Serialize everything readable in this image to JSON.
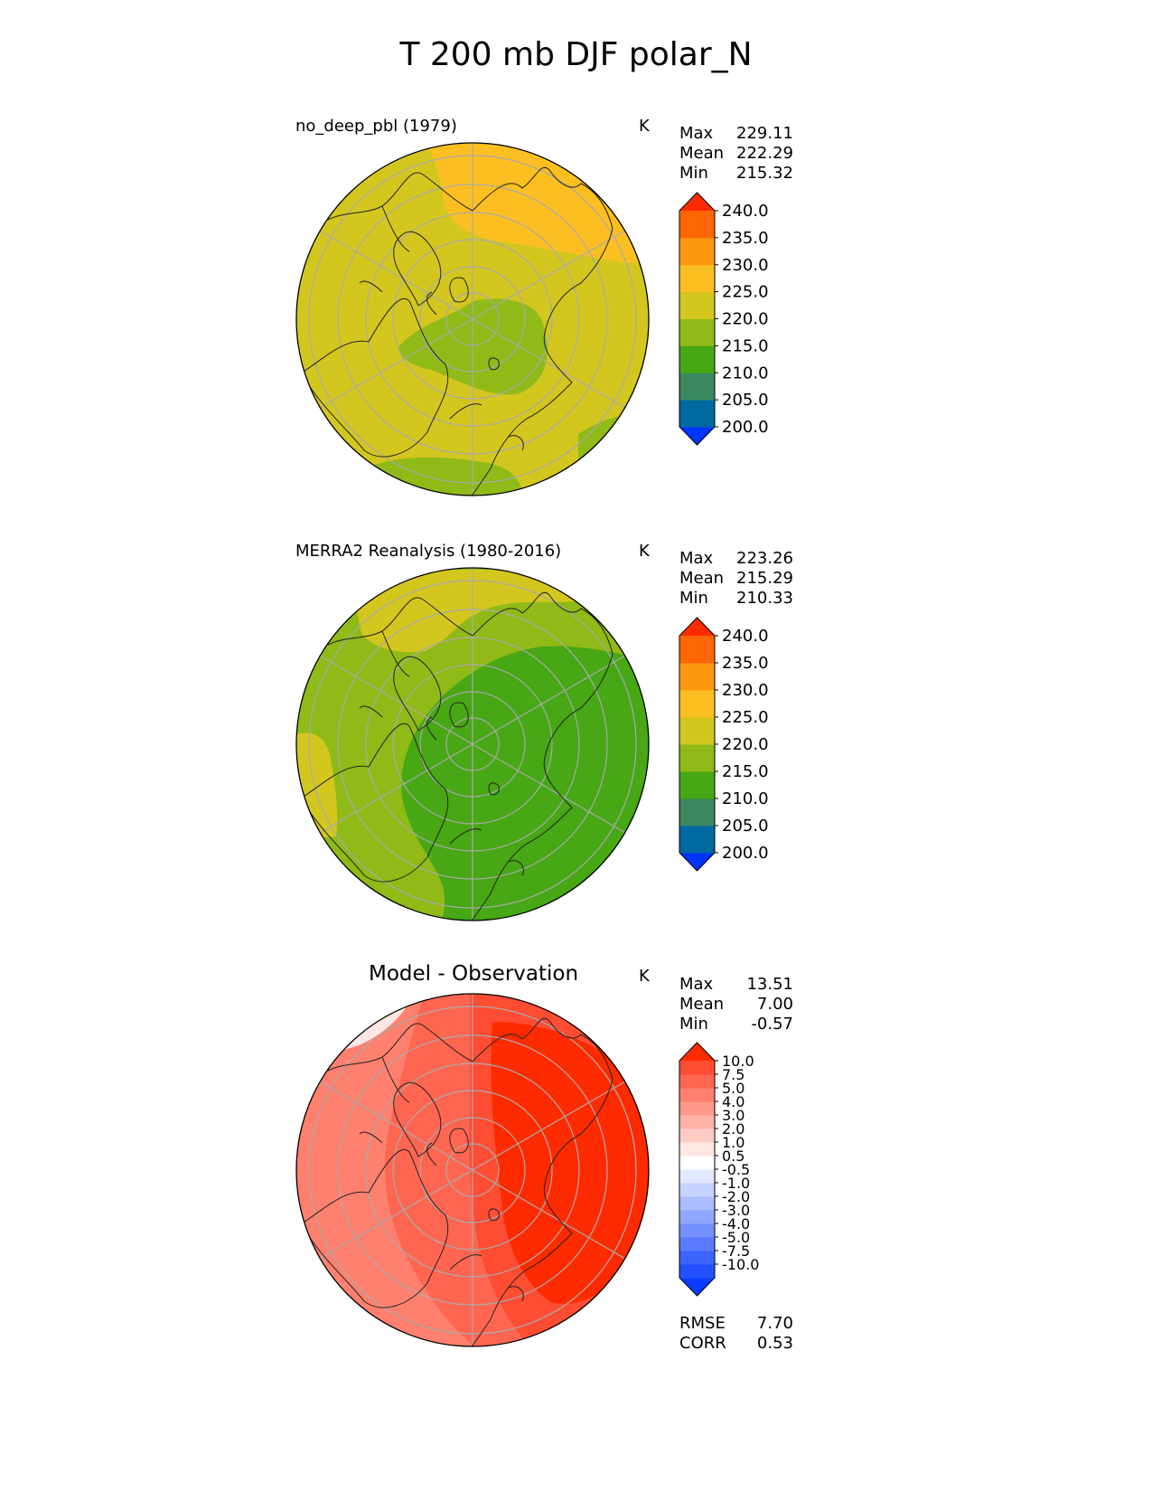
{
  "title": "T 200 mb DJF polar_N",
  "panels": [
    {
      "id": "test",
      "title": "no_deep_pbl (1979)",
      "units": "K",
      "stats": [
        {
          "label": "Max",
          "value": "229.11"
        },
        {
          "label": "Mean",
          "value": "222.29"
        },
        {
          "label": "Min",
          "value": "215.32"
        }
      ],
      "colorbar": {
        "ticks": [
          "240.0",
          "235.0",
          "230.0",
          "225.0",
          "220.0",
          "215.0",
          "210.0",
          "205.0",
          "200.0"
        ],
        "colors": [
          "#0034ff",
          "#0069a0",
          "#3a8760",
          "#47a715",
          "#90ba17",
          "#d3c71f",
          "#fcbf22",
          "#fe9810",
          "#fe6604",
          "#ff2b00"
        ]
      }
    },
    {
      "id": "ref",
      "title": "MERRA2 Reanalysis (1980-2016)",
      "units": "K",
      "stats": [
        {
          "label": "Max",
          "value": "223.26"
        },
        {
          "label": "Mean",
          "value": "215.29"
        },
        {
          "label": "Min",
          "value": "210.33"
        }
      ],
      "colorbar": {
        "ticks": [
          "240.0",
          "235.0",
          "230.0",
          "225.0",
          "220.0",
          "215.0",
          "210.0",
          "205.0",
          "200.0"
        ],
        "colors": [
          "#0034ff",
          "#0069a0",
          "#3a8760",
          "#47a715",
          "#90ba17",
          "#d3c71f",
          "#fcbf22",
          "#fe9810",
          "#fe6604",
          "#ff2b00"
        ]
      }
    },
    {
      "id": "diff",
      "title": "Model - Observation",
      "units": "K",
      "stats": [
        {
          "label": "Max",
          "value": "13.51"
        },
        {
          "label": "Mean",
          "value": "7.00"
        },
        {
          "label": "Min",
          "value": "-0.57"
        }
      ],
      "extra_stats": [
        {
          "label": "RMSE",
          "value": "7.70"
        },
        {
          "label": "CORR",
          "value": "0.53"
        }
      ],
      "colorbar": {
        "ticks": [
          "10.0",
          "7.5",
          "5.0",
          "4.0",
          "3.0",
          "2.0",
          "1.0",
          "0.5",
          "-0.5",
          "-1.0",
          "-2.0",
          "-3.0",
          "-4.0",
          "-5.0",
          "-7.5",
          "-10.0"
        ],
        "colors": [
          "#0a3dff",
          "#2450ff",
          "#3d64ff",
          "#5a7aff",
          "#7590ff",
          "#90a6ff",
          "#abbcff",
          "#c6d2ff",
          "#e2e8ff",
          "#ffffff",
          "#ffe6e2",
          "#ffccc5",
          "#ffb3a8",
          "#ff998b",
          "#ff806e",
          "#ff6651",
          "#ff4d34",
          "#ff2b00"
        ]
      }
    }
  ],
  "chart_data": {
    "type": "heatmap",
    "title": "T 200 mb DJF polar_N",
    "projection": "north polar stereographic",
    "variable": "T 200 mb",
    "season": "DJF",
    "region": "polar_N",
    "panels": [
      {
        "name": "no_deep_pbl (1979)",
        "max": 229.11,
        "mean": 222.29,
        "min": 215.32,
        "units": "K",
        "levels": [
          200,
          205,
          210,
          215,
          220,
          225,
          230,
          235,
          240
        ]
      },
      {
        "name": "MERRA2 Reanalysis (1980-2016)",
        "max": 223.26,
        "mean": 215.29,
        "min": 210.33,
        "units": "K",
        "levels": [
          200,
          205,
          210,
          215,
          220,
          225,
          230,
          235,
          240
        ]
      },
      {
        "name": "Model - Observation",
        "max": 13.51,
        "mean": 7.0,
        "min": -0.57,
        "rmse": 7.7,
        "corr": 0.53,
        "units": "K",
        "levels": [
          -10,
          -7.5,
          -5,
          -4,
          -3,
          -2,
          -1,
          -0.5,
          0.5,
          1,
          2,
          3,
          4,
          5,
          7.5,
          10
        ]
      }
    ]
  }
}
